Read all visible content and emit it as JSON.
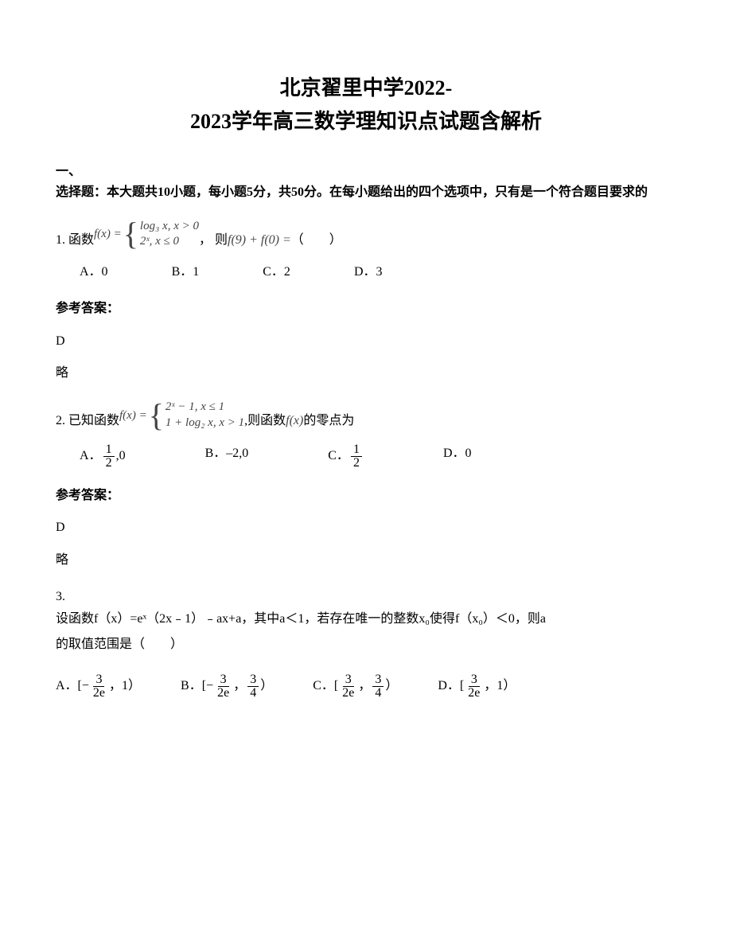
{
  "title_line1": "北京翟里中学2022-",
  "title_line2": "2023学年高三数学理知识点试题含解析",
  "section_header_1": "一、",
  "section_header_2": "选择题：本大题共10小题，每小题5分，共50分。在每小题给出的四个选项中，只有是一个符合题目要求的",
  "q1": {
    "num": "1. 函数",
    "formula_lhs": "f(x) =",
    "piece1": "log₃ x, x > 0",
    "piece2": "2ˣ, x ≤ 0",
    "mid": "， 则",
    "expr": "f(9) + f(0) =",
    "tail": "（　　）",
    "optA": "A．0",
    "optB": "B．1",
    "optC": "C．2",
    "optD": "D．3",
    "answer_label": "参考答案：",
    "answer": "D",
    "note": "略"
  },
  "q2": {
    "num": "2. 已知函数",
    "formula_lhs": "f(x) =",
    "piece1": "2ˣ − 1, x ≤ 1",
    "piece2": "1 + log₂ x, x > 1",
    "mid": ",则函数",
    "expr": "f(x)",
    "tail": "的零点为",
    "optA_prefix": "A．",
    "optA_frac_num": "1",
    "optA_frac_den": "2",
    "optA_suffix": ",0",
    "optB": "B．–2,0",
    "optC_prefix": "C．",
    "optC_frac_num": "1",
    "optC_frac_den": "2",
    "optD": "D．0",
    "answer_label": "参考答案：",
    "answer": "D",
    "note": "略"
  },
  "q3": {
    "num": "3.",
    "text1": "设函数f（x）=eˣ（2x﹣1）﹣ax+a，其中a＜1，若存在唯一的整数x₀使得f（x₀）＜0，则a",
    "text2": "的取值范围是（　　）",
    "optA_prefix": "A．[",
    "optA_neg": "−",
    "optA_num": "3",
    "optA_den": "2e",
    "optA_suffix": "，1）",
    "optB_prefix": "B．[",
    "optB_neg": "−",
    "optB_num1": "3",
    "optB_den1": "2e",
    "optB_mid": "，",
    "optB_num2": "3",
    "optB_den2": "4",
    "optB_suffix": "）",
    "optC_prefix": "C．[",
    "optC_num1": "3",
    "optC_den1": "2e",
    "optC_mid": "，",
    "optC_num2": "3",
    "optC_den2": "4",
    "optC_suffix": "）",
    "optD_prefix": "D．[",
    "optD_num": "3",
    "optD_den": "2e",
    "optD_suffix": "，1）"
  }
}
